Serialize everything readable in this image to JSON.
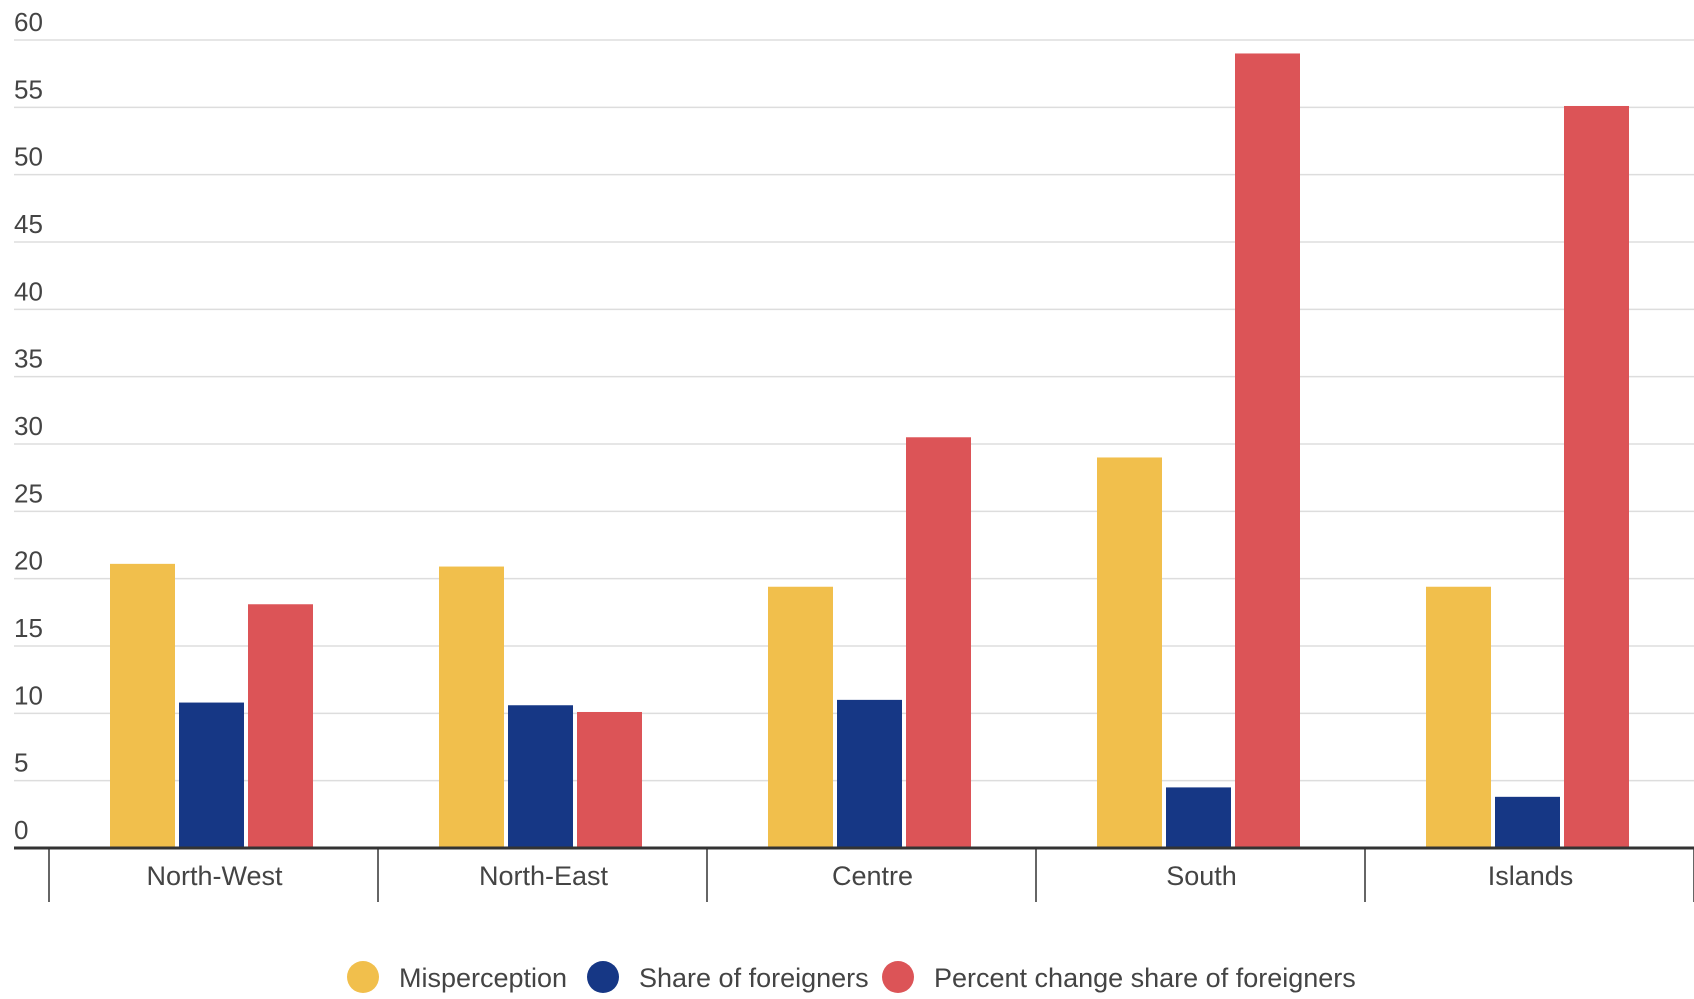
{
  "chart_data": {
    "type": "bar",
    "title": "",
    "xlabel": "",
    "ylabel": "",
    "categories": [
      "North-West",
      "North-East",
      "Centre",
      "South",
      "Islands"
    ],
    "series": [
      {
        "name": "Misperception",
        "color": "#f1bf4c",
        "values": [
          21.1,
          20.9,
          19.4,
          29.0,
          19.4
        ]
      },
      {
        "name": "Share of foreigners",
        "color": "#163785",
        "values": [
          10.8,
          10.6,
          11.0,
          4.5,
          3.8
        ]
      },
      {
        "name": "Percent change share of foreigners",
        "color": "#dc5457",
        "values": [
          18.1,
          10.1,
          30.5,
          59.0,
          55.1
        ]
      }
    ],
    "ylim": [
      0,
      60
    ],
    "yticks": [
      "0",
      "5",
      "10",
      "15",
      "20",
      "25",
      "30",
      "35",
      "40",
      "45",
      "50",
      "55",
      "60"
    ],
    "grid": true,
    "legend_position": "bottom"
  }
}
